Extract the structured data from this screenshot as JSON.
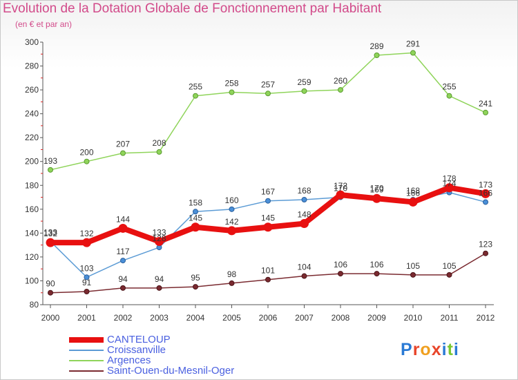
{
  "title": "Evolution de la Dotation Globale de Fonctionnement par Habitant",
  "subtitle": "(en € et par an)",
  "logo": {
    "text": "Proxiti"
  },
  "colors": {
    "CANTELOUP": "#e81010",
    "Croissanville": "#5b9bd5",
    "Argences": "#8fd45a",
    "Saint-Ouen-du-Mesnil-Oger": "#7a2a30"
  },
  "chart_data": {
    "type": "line",
    "x": [
      "2000",
      "2001",
      "2002",
      "2003",
      "2004",
      "2005",
      "2006",
      "2007",
      "2008",
      "2009",
      "2010",
      "2011",
      "2012"
    ],
    "ylim": [
      80,
      300
    ],
    "yticks": [
      80,
      100,
      120,
      140,
      160,
      180,
      200,
      220,
      240,
      260,
      280,
      300
    ],
    "grid": false,
    "legend": "bottom-left",
    "series": [
      {
        "name": "CANTELOUP",
        "values": [
          132,
          132,
          144,
          133,
          145,
          142,
          145,
          148,
          172,
          169,
          166,
          178,
          173
        ],
        "labels": [
          "132",
          "132",
          "144",
          "133",
          "145",
          "142",
          "145",
          "148",
          "172",
          "169",
          "166",
          "178",
          "173"
        ]
      },
      {
        "name": "Croissanville",
        "values": [
          133,
          103,
          117,
          128,
          158,
          160,
          167,
          168,
          170,
          170,
          168,
          174,
          166
        ],
        "labels": [
          "133",
          "103",
          "117",
          "128",
          "158",
          "160",
          "167",
          "168",
          "170",
          "170",
          "168",
          "174",
          "166"
        ]
      },
      {
        "name": "Argences",
        "values": [
          193,
          200,
          207,
          208,
          255,
          258,
          257,
          259,
          260,
          289,
          291,
          255,
          241
        ],
        "labels": [
          "193",
          "200",
          "207",
          "208",
          "255",
          "258",
          "257",
          "259",
          "260",
          "289",
          "291",
          "255",
          "241"
        ]
      },
      {
        "name": "Saint-Ouen-du-Mesnil-Oger",
        "values": [
          90,
          91,
          94,
          94,
          95,
          98,
          101,
          104,
          106,
          106,
          105,
          105,
          123
        ],
        "labels": [
          "90",
          "91",
          "94",
          "94",
          "95",
          "98",
          "101",
          "104",
          "106",
          "106",
          "105",
          "105",
          "123"
        ]
      }
    ]
  }
}
